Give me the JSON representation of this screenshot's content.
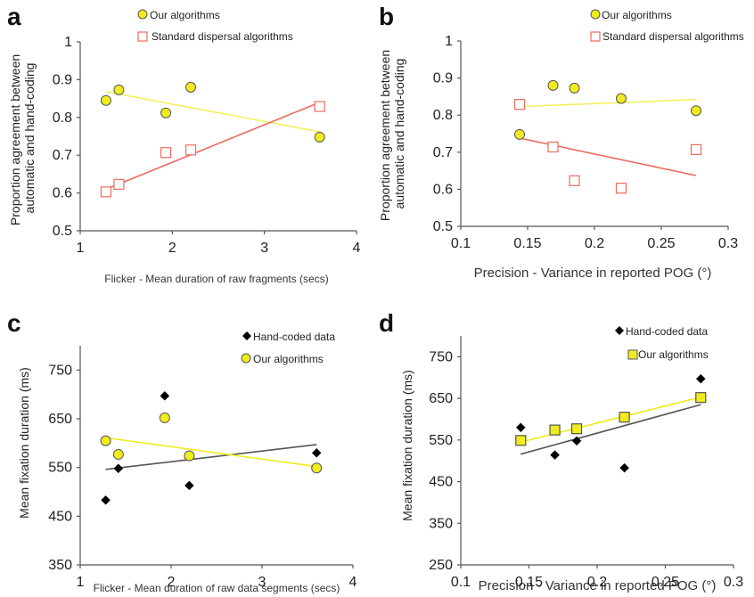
{
  "chart_data": [
    {
      "panel": "a",
      "type": "scatter",
      "xlabel": "Flicker - Mean duration of raw fragments (secs)",
      "ylabel": [
        "Proportion agreement between",
        "automatic and hand-coding"
      ],
      "xlim": [
        1,
        4
      ],
      "ylim": [
        0.5,
        1
      ],
      "xticks": [
        "1",
        "2",
        "3",
        "4"
      ],
      "yticks": [
        "0.5",
        "0.6",
        "0.7",
        "0.8",
        "0.9",
        "1"
      ],
      "series": [
        {
          "name": "Our algorithms",
          "marker": "circle",
          "fill": "#f0ec1e",
          "stroke": "#555555",
          "line_color": "#f5f060",
          "x": [
            1.28,
            1.42,
            1.93,
            2.2,
            3.6
          ],
          "y": [
            0.845,
            0.873,
            0.812,
            0.88,
            0.748
          ],
          "trendline": [
            [
              1.28,
              0.868
            ],
            [
              3.6,
              0.762
            ]
          ]
        },
        {
          "name": "Standard dispersal algorithms",
          "marker": "square",
          "fill": "#ffffff",
          "stroke": "#ee6a5e",
          "line_color": "#ee6a5e",
          "x": [
            1.28,
            1.42,
            1.93,
            2.2,
            3.6
          ],
          "y": [
            0.603,
            0.623,
            0.707,
            0.714,
            0.829
          ],
          "trendline": [
            [
              1.28,
              0.61
            ],
            [
              3.6,
              0.84
            ]
          ]
        }
      ]
    },
    {
      "panel": "b",
      "type": "scatter",
      "xlabel": "Precision - Variance in reported POG (°)",
      "ylabel": [
        "Proportion agreement between",
        "automatic and hand-coding"
      ],
      "xlim": [
        0.1,
        0.3
      ],
      "ylim": [
        0.5,
        1
      ],
      "xticks": [
        "0.1",
        "0.15",
        "0.2",
        "0.25",
        "0.3"
      ],
      "yticks": [
        "0.5",
        "0.6",
        "0.7",
        "0.8",
        "0.9",
        "1"
      ],
      "series": [
        {
          "name": "Our algorithms",
          "marker": "circle",
          "fill": "#f0ec1e",
          "stroke": "#555555",
          "line_color": "#f5f060",
          "x": [
            0.144,
            0.169,
            0.185,
            0.22,
            0.276
          ],
          "y": [
            0.748,
            0.88,
            0.873,
            0.845,
            0.812
          ],
          "trendline": [
            [
              0.144,
              0.823
            ],
            [
              0.276,
              0.842
            ]
          ]
        },
        {
          "name": "Standard dispersal algorithms",
          "marker": "square",
          "fill": "#ffffff",
          "stroke": "#ee6a5e",
          "line_color": "#ee6a5e",
          "x": [
            0.144,
            0.169,
            0.185,
            0.22,
            0.276
          ],
          "y": [
            0.829,
            0.714,
            0.623,
            0.603,
            0.707
          ],
          "trendline": [
            [
              0.144,
              0.738
            ],
            [
              0.276,
              0.637
            ]
          ]
        }
      ]
    },
    {
      "panel": "c",
      "type": "scatter",
      "xlabel": "Flicker - Mean duration of raw data segments (secs)",
      "ylabel": [
        "Mean fixation duration (ms)"
      ],
      "xlim": [
        1,
        4
      ],
      "ylim": [
        350,
        800
      ],
      "ytick_values": [
        350,
        450,
        550,
        650,
        750
      ],
      "xticks": [
        "1",
        "2",
        "3",
        "4"
      ],
      "yticks": [
        "350",
        "450",
        "550",
        "650",
        "750"
      ],
      "series": [
        {
          "name": "Hand-coded data",
          "marker": "diamond",
          "fill": "#000000",
          "stroke": "#000000",
          "line_color": "#555555",
          "x": [
            1.28,
            1.42,
            1.93,
            2.2,
            3.6
          ],
          "y": [
            483,
            548,
            697,
            513,
            580
          ],
          "trendline": [
            [
              1.28,
              546
            ],
            [
              3.6,
              597
            ]
          ]
        },
        {
          "name": "Our algorithms",
          "marker": "circle",
          "fill": "#f0ec1e",
          "stroke": "#555555",
          "line_color": "#f0ec1e",
          "x": [
            1.28,
            1.42,
            1.93,
            2.2,
            3.6
          ],
          "y": [
            605,
            577,
            652,
            574,
            549
          ],
          "trendline": [
            [
              1.28,
              611
            ],
            [
              3.6,
              552
            ]
          ]
        }
      ]
    },
    {
      "panel": "d",
      "type": "scatter",
      "xlabel": "Precision - Variance in reported POG (°)",
      "ylabel": [
        "Mean fixation duration (ms)"
      ],
      "xlim": [
        0.1,
        0.3
      ],
      "ylim": [
        250,
        800
      ],
      "ytick_values": [
        250,
        350,
        450,
        550,
        650,
        750
      ],
      "xticks": [
        "0.1",
        "0.15",
        "0.2",
        "0.25",
        "0.3"
      ],
      "yticks": [
        "250",
        "350",
        "450",
        "550",
        "650",
        "750"
      ],
      "series": [
        {
          "name": "Hand-coded data",
          "marker": "diamond",
          "fill": "#000000",
          "stroke": "#000000",
          "line_color": "#555555",
          "x": [
            0.144,
            0.169,
            0.185,
            0.22,
            0.276
          ],
          "y": [
            580,
            514,
            548,
            483,
            697
          ],
          "trendline": [
            [
              0.144,
              516
            ],
            [
              0.276,
              635
            ]
          ]
        },
        {
          "name": "Our algorithms",
          "marker": "square",
          "fill": "#f0ec1e",
          "stroke": "#555555",
          "line_color": "#f0ec1e",
          "x": [
            0.144,
            0.169,
            0.185,
            0.22,
            0.276
          ],
          "y": [
            549,
            574,
            577,
            605,
            652
          ],
          "trendline": [
            [
              0.144,
              545
            ],
            [
              0.276,
              653
            ]
          ]
        }
      ]
    }
  ]
}
